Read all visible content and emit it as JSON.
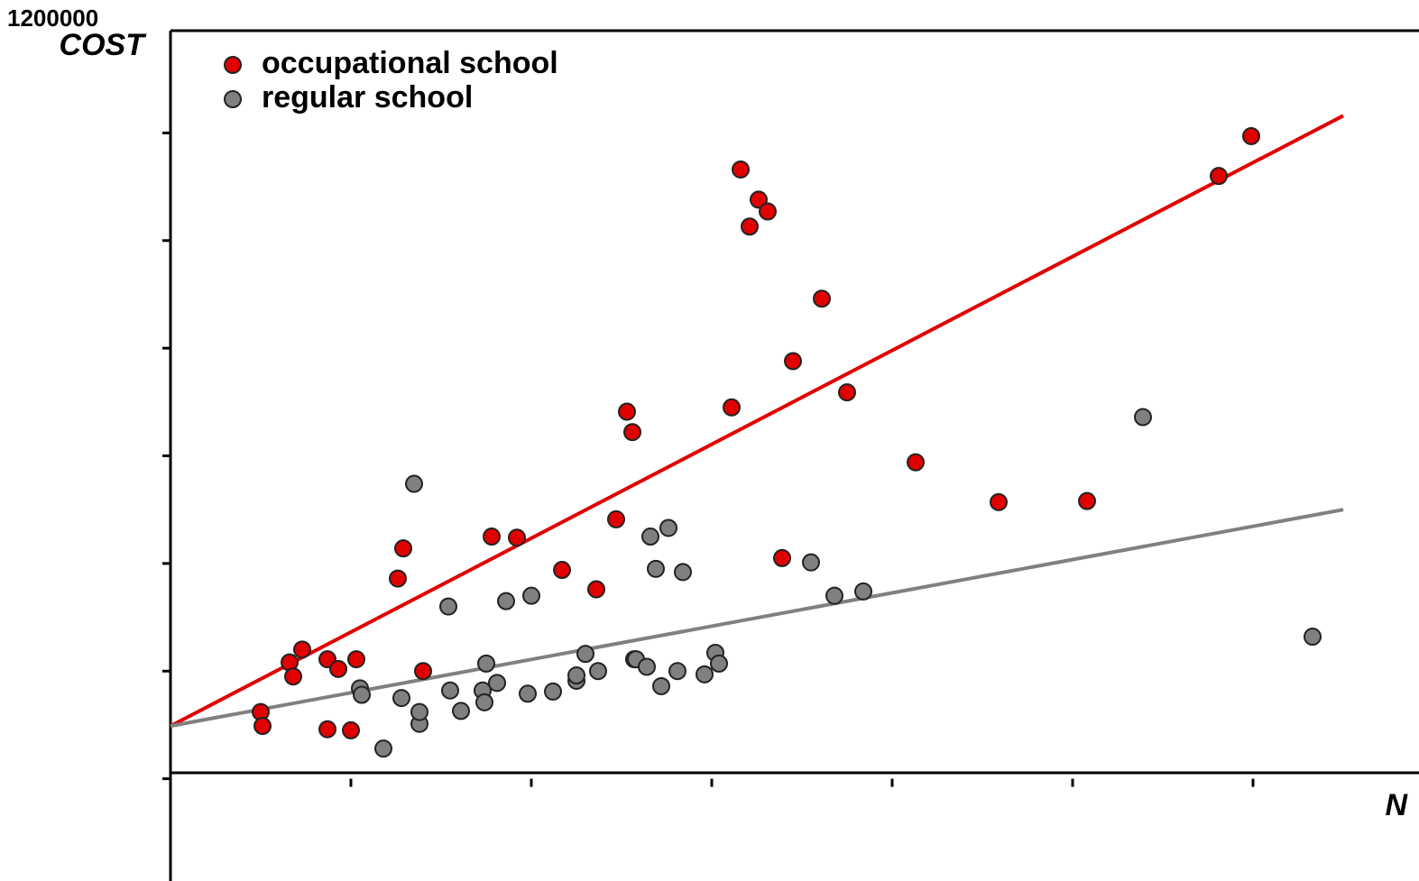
{
  "chart_data": {
    "type": "scatter",
    "overprint_label": "1200000",
    "ylabel": "COST",
    "xlabel": "N",
    "xlim": [
      0,
      6.92
    ],
    "ylim": [
      -0.95,
      6.95
    ],
    "xticks": [
      0,
      1,
      2,
      3,
      4,
      5,
      6
    ],
    "yticks": [
      0,
      1,
      2,
      3,
      4,
      5,
      6
    ],
    "series": [
      {
        "name": "occupational school",
        "color": "#e00000",
        "x": [
          0.5,
          0.51,
          0.66,
          0.68,
          0.73,
          0.87,
          0.93,
          0.87,
          1.0,
          1.03,
          1.26,
          1.29,
          1.4,
          1.78,
          1.92,
          2.17,
          2.36,
          2.47,
          2.53,
          2.56,
          3.11,
          3.16,
          3.26,
          3.21,
          3.31,
          3.39,
          3.45,
          3.61,
          3.75,
          4.13,
          4.59,
          5.08,
          5.81,
          5.99
        ],
        "values": [
          0.62,
          0.49,
          1.08,
          0.95,
          1.2,
          1.11,
          1.02,
          0.46,
          0.45,
          1.11,
          1.86,
          2.14,
          1.0,
          2.25,
          2.24,
          1.94,
          1.76,
          2.41,
          3.41,
          3.22,
          3.45,
          5.66,
          5.38,
          5.13,
          5.27,
          2.05,
          3.88,
          4.46,
          3.59,
          2.94,
          2.57,
          2.58,
          5.6,
          5.97
        ],
        "trend": {
          "x": [
            0,
            6.5
          ],
          "values": [
            0.49,
            6.16
          ]
        }
      },
      {
        "name": "regular school",
        "color": "#808080",
        "x": [
          1.35,
          1.05,
          1.06,
          1.18,
          1.28,
          1.38,
          1.38,
          1.54,
          1.55,
          1.61,
          1.73,
          1.74,
          1.75,
          1.81,
          1.86,
          1.98,
          2.0,
          2.12,
          2.25,
          2.25,
          2.3,
          2.37,
          2.57,
          2.58,
          2.64,
          2.66,
          2.69,
          2.72,
          2.76,
          2.81,
          2.84,
          2.96,
          3.02,
          3.04,
          3.55,
          3.68,
          3.84,
          5.39,
          6.33
        ],
        "values": [
          2.74,
          0.84,
          0.78,
          0.28,
          0.75,
          0.51,
          0.62,
          1.6,
          0.82,
          0.63,
          0.82,
          0.71,
          1.07,
          0.89,
          1.65,
          0.79,
          1.7,
          0.81,
          0.91,
          0.96,
          1.16,
          1.0,
          1.11,
          1.11,
          1.04,
          2.25,
          1.95,
          0.86,
          2.33,
          1.0,
          1.92,
          0.97,
          1.17,
          1.07,
          2.01,
          1.7,
          1.74,
          3.36,
          1.32
        ],
        "trend": {
          "x": [
            0,
            6.5
          ],
          "values": [
            0.49,
            2.5
          ]
        }
      }
    ]
  }
}
